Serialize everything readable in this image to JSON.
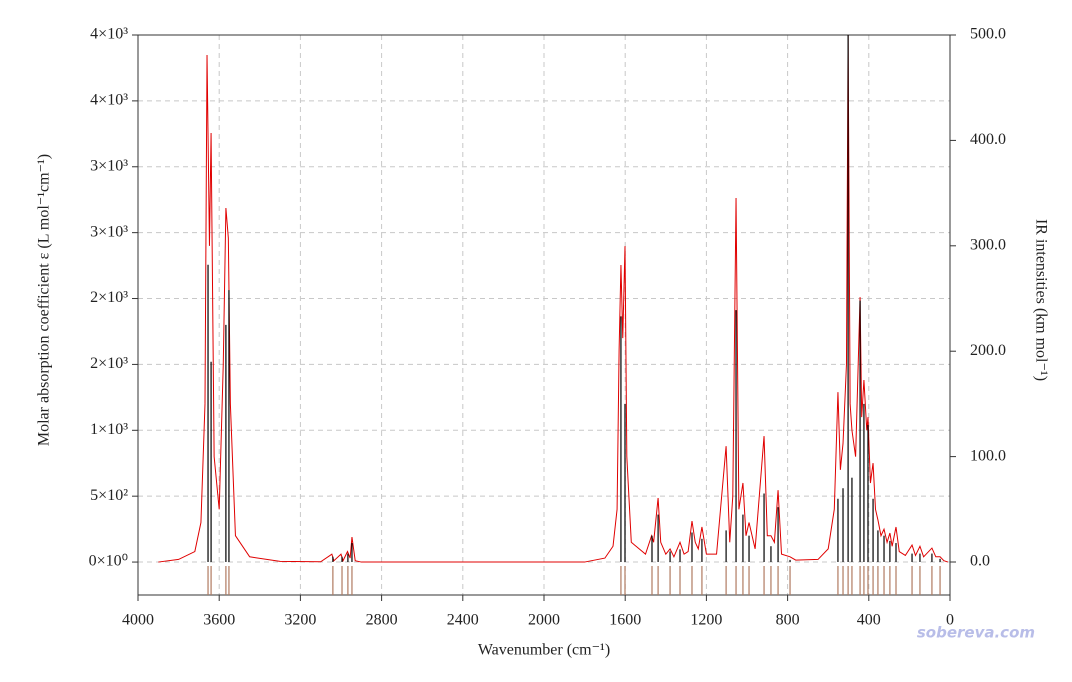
{
  "chart_data": {
    "type": "line",
    "x_label": "Wavenumber (cm⁻¹)",
    "y_label": "Molar absorption coefficient  ε (L mol⁻¹cm⁻¹)",
    "y2_label": "IR intensities (km mol⁻¹)",
    "watermark": "sobereva.com",
    "xlim": [
      4000,
      0
    ],
    "xticks": [
      4000,
      3600,
      3200,
      2800,
      2400,
      2000,
      1600,
      1200,
      800,
      400,
      0
    ],
    "ylim": [
      -250,
      4000
    ],
    "yticks": [
      {
        "value": 0,
        "label": "0×10⁰"
      },
      {
        "value": 500,
        "label": "5×10²"
      },
      {
        "value": 1000,
        "label": "1×10³"
      },
      {
        "value": 1500,
        "label": "2×10³"
      },
      {
        "value": 2000,
        "label": "2×10³"
      },
      {
        "value": 2500,
        "label": "3×10³"
      },
      {
        "value": 3000,
        "label": "3×10³"
      },
      {
        "value": 3500,
        "label": "4×10³"
      },
      {
        "value": 4000,
        "label": "4×10³"
      }
    ],
    "y2lim": [
      -31.3,
      500
    ],
    "y2ticks": [
      {
        "value": 0,
        "label": "0.0"
      },
      {
        "value": 100,
        "label": "100.0"
      },
      {
        "value": 200,
        "label": "200.0"
      },
      {
        "value": 300,
        "label": "300.0"
      },
      {
        "value": 400,
        "label": "400.0"
      },
      {
        "value": 500,
        "label": "500.0"
      }
    ],
    "grid": true,
    "x": [
      3900,
      3800,
      3720,
      3690,
      3670,
      3660,
      3648,
      3640,
      3625,
      3600,
      3580,
      3567,
      3555,
      3545,
      3520,
      3450,
      3300,
      3100,
      3045,
      3035,
      3000,
      2990,
      2968,
      2955,
      2946,
      2930,
      2900,
      1800,
      1700,
      1660,
      1640,
      1630,
      1621,
      1612,
      1601,
      1592,
      1570,
      1500,
      1470,
      1460,
      1438,
      1425,
      1400,
      1379,
      1360,
      1330,
      1310,
      1290,
      1271,
      1255,
      1240,
      1222,
      1200,
      1150,
      1103,
      1085,
      1070,
      1054,
      1040,
      1020,
      1005,
      990,
      960,
      916,
      900,
      882,
      865,
      847,
      830,
      788,
      760,
      650,
      600,
      570,
      552,
      540,
      527,
      510,
      502,
      492,
      483,
      465,
      443,
      435,
      424,
      410,
      404,
      392,
      379,
      367,
      355,
      340,
      325,
      310,
      296,
      285,
      266,
      250,
      220,
      187,
      170,
      148,
      130,
      89,
      70,
      49,
      30,
      10
    ],
    "series": [
      {
        "color": "#e00000",
        "values": [
          0,
          20,
          80,
          300,
          1200,
          3848,
          2400,
          3256,
          800,
          400,
          1500,
          2687,
          2459,
          1200,
          200,
          40,
          5,
          2,
          60,
          10,
          60,
          10,
          80,
          30,
          190,
          10,
          0,
          0,
          30,
          120,
          400,
          1609,
          2254,
          1700,
          2398,
          800,
          150,
          60,
          200,
          150,
          486,
          150,
          60,
          100,
          40,
          150,
          60,
          80,
          311,
          150,
          100,
          266,
          60,
          60,
          880,
          150,
          500,
          2763,
          400,
          600,
          200,
          300,
          100,
          956,
          200,
          200,
          150,
          546,
          60,
          40,
          15,
          20,
          100,
          400,
          1290,
          700,
          900,
          1500,
          4000,
          1200,
          1000,
          800,
          2011,
          1100,
          1381,
          1000,
          1100,
          600,
          751,
          400,
          319,
          200,
          250,
          150,
          220,
          120,
          266,
          80,
          50,
          129,
          50,
          120,
          40,
          106,
          40,
          40,
          10,
          0
        ]
      }
    ],
    "sticks": {
      "axis": "y2",
      "color": "#000000",
      "marker_color": "#b07a60",
      "x": [
        3655,
        3640,
        3567,
        3552,
        3040,
        2995,
        2966,
        2946,
        1621,
        1601,
        1468,
        1438,
        1379,
        1330,
        1271,
        1222,
        1103,
        1054,
        1020,
        990,
        916,
        882,
        847,
        788,
        552,
        527,
        502,
        483,
        443,
        424,
        404,
        379,
        355,
        325,
        296,
        266,
        187,
        148,
        89,
        49
      ],
      "values": [
        282,
        190,
        225,
        258,
        5,
        5,
        8,
        18,
        233,
        150,
        25,
        45,
        10,
        12,
        28,
        22,
        30,
        239,
        45,
        25,
        65,
        15,
        52,
        2,
        60,
        70,
        500,
        80,
        248,
        150,
        130,
        60,
        30,
        25,
        20,
        18,
        8,
        8,
        8,
        3
      ]
    }
  }
}
